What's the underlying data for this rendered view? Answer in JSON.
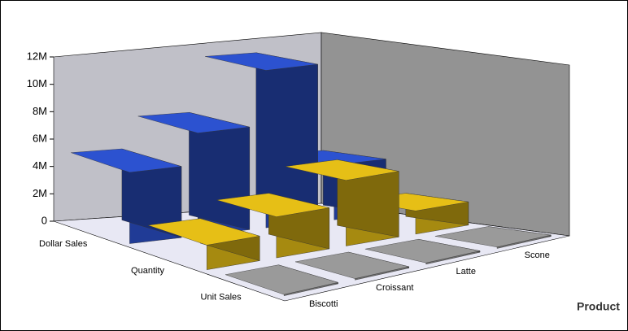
{
  "chart_data": {
    "type": "bar3d",
    "x_axis_label": "Product",
    "categories": [
      "Biscotti",
      "Croissant",
      "Latte",
      "Scone"
    ],
    "series": [
      {
        "name": "Dollar Sales",
        "color": "#2c52d0",
        "values": [
          5200000,
          7500000,
          11500000,
          4000000
        ]
      },
      {
        "name": "Quantity",
        "color": "#e6bf16",
        "values": [
          1800000,
          3000000,
          4800000,
          1700000
        ]
      },
      {
        "name": "Unit Sales",
        "color": "#9a9a9a",
        "values": [
          100000,
          100000,
          100000,
          100000
        ]
      }
    ],
    "ylim": [
      0,
      12000000
    ],
    "yticks": [
      0,
      {
        "value": 2000000,
        "label": "2M"
      },
      {
        "value": 4000000,
        "label": "4M"
      },
      {
        "value": 6000000,
        "label": "6M"
      },
      {
        "value": 8000000,
        "label": "8M"
      },
      {
        "value": 10000000,
        "label": "10M"
      },
      {
        "value": 12000000,
        "label": "12M"
      }
    ]
  }
}
